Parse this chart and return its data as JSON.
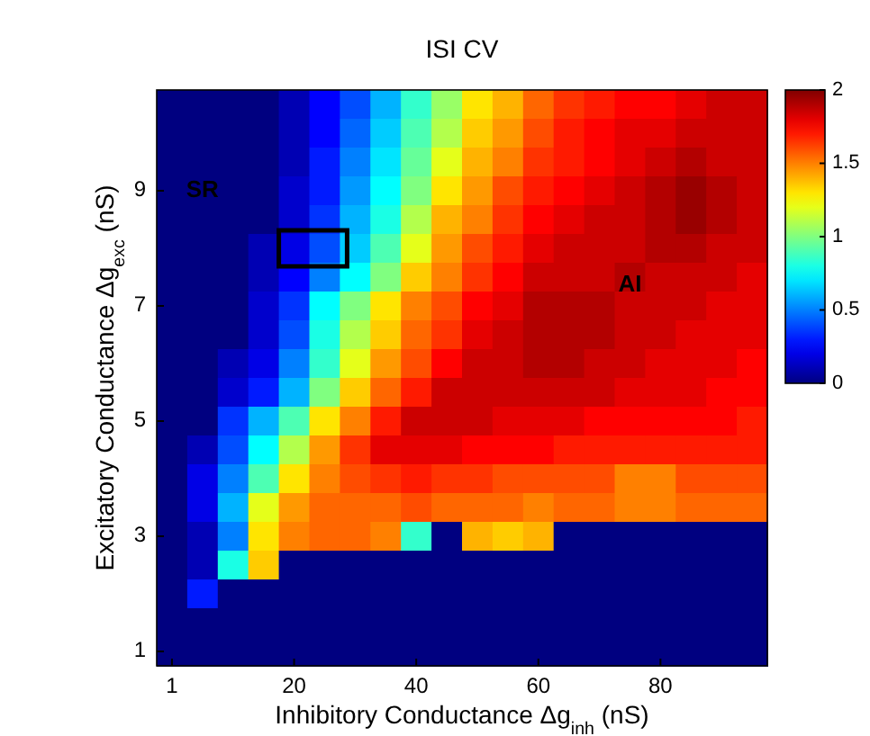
{
  "chart_data": {
    "type": "heatmap",
    "title": "ISI CV",
    "xlabel": "Inhibitory Conductance Δg$_{inh}$ (nS)",
    "ylabel": "Excitatory Conductance Δg$_{exc}$ (nS)",
    "categories": [
      "1",
      null,
      null,
      null,
      "20",
      null,
      null,
      null,
      "40",
      null,
      null,
      null,
      "60",
      null,
      null,
      null,
      "80",
      null,
      null,
      null
    ],
    "y_categories": [
      null,
      null,
      null,
      "9",
      null,
      null,
      null,
      "7",
      null,
      null,
      null,
      "5",
      null,
      null,
      null,
      "3",
      null,
      null,
      null,
      "1"
    ],
    "cells": [
      [
        0,
        0,
        0,
        0,
        0.1,
        0.25,
        0.4,
        0.6,
        0.85,
        1.05,
        1.3,
        1.4,
        1.55,
        1.65,
        1.7,
        1.75,
        1.75,
        1.8,
        1.85,
        1.85
      ],
      [
        0,
        0,
        0,
        0,
        0.1,
        0.25,
        0.45,
        0.65,
        0.9,
        1.1,
        1.35,
        1.45,
        1.6,
        1.7,
        1.75,
        1.8,
        1.8,
        1.85,
        1.85,
        1.85
      ],
      [
        0,
        0,
        0,
        0,
        0.1,
        0.3,
        0.5,
        0.7,
        0.95,
        1.2,
        1.4,
        1.5,
        1.65,
        1.7,
        1.75,
        1.8,
        1.85,
        1.9,
        1.85,
        1.85
      ],
      [
        0,
        0,
        0,
        0,
        0.15,
        0.3,
        0.55,
        0.75,
        1.0,
        1.3,
        1.45,
        1.6,
        1.7,
        1.75,
        1.8,
        1.85,
        1.9,
        1.95,
        1.9,
        1.85
      ],
      [
        0,
        0,
        0,
        0,
        0.15,
        0.35,
        0.6,
        0.8,
        1.1,
        1.4,
        1.5,
        1.65,
        1.75,
        1.8,
        1.85,
        1.85,
        1.9,
        1.95,
        1.9,
        1.85
      ],
      [
        0,
        0,
        0,
        0.1,
        0.2,
        0.4,
        0.65,
        0.9,
        1.2,
        1.45,
        1.6,
        1.7,
        1.8,
        1.85,
        1.85,
        1.85,
        1.9,
        1.9,
        1.85,
        1.85
      ],
      [
        0,
        0,
        0,
        0.1,
        0.25,
        0.5,
        0.75,
        1.0,
        1.35,
        1.5,
        1.65,
        1.75,
        1.85,
        1.85,
        1.85,
        1.9,
        1.85,
        1.85,
        1.85,
        1.8
      ],
      [
        0,
        0,
        0,
        0.15,
        0.35,
        0.75,
        1.0,
        1.3,
        1.5,
        1.6,
        1.75,
        1.8,
        1.9,
        1.9,
        1.9,
        1.85,
        1.85,
        1.85,
        1.8,
        1.8
      ],
      [
        0,
        0,
        0,
        0.15,
        0.4,
        0.8,
        1.1,
        1.35,
        1.55,
        1.65,
        1.8,
        1.85,
        1.9,
        1.9,
        1.9,
        1.85,
        1.85,
        1.8,
        1.8,
        1.8
      ],
      [
        0,
        0,
        0.1,
        0.2,
        0.5,
        0.85,
        1.2,
        1.45,
        1.6,
        1.75,
        1.85,
        1.85,
        1.9,
        1.9,
        1.85,
        1.85,
        1.8,
        1.8,
        1.8,
        1.75
      ],
      [
        0,
        0,
        0.15,
        0.3,
        0.6,
        1.0,
        1.35,
        1.55,
        1.7,
        1.85,
        1.85,
        1.85,
        1.85,
        1.85,
        1.85,
        1.8,
        1.8,
        1.8,
        1.75,
        1.75
      ],
      [
        0,
        0,
        0.35,
        0.6,
        0.9,
        1.3,
        1.5,
        1.7,
        1.85,
        1.85,
        1.85,
        1.8,
        1.8,
        1.8,
        1.75,
        1.75,
        1.75,
        1.75,
        1.75,
        1.7
      ],
      [
        0,
        0.1,
        0.4,
        0.75,
        1.1,
        1.45,
        1.65,
        1.8,
        1.8,
        1.8,
        1.75,
        1.75,
        1.75,
        1.7,
        1.7,
        1.7,
        1.7,
        1.7,
        1.7,
        1.7
      ],
      [
        0,
        0.2,
        0.5,
        0.9,
        1.3,
        1.5,
        1.6,
        1.65,
        1.7,
        1.65,
        1.65,
        1.6,
        1.6,
        1.6,
        1.6,
        1.5,
        1.5,
        1.6,
        1.6,
        1.6
      ],
      [
        0,
        0.2,
        0.6,
        1.2,
        1.45,
        1.55,
        1.55,
        1.55,
        1.6,
        1.55,
        1.55,
        1.55,
        1.5,
        1.55,
        1.55,
        1.5,
        1.5,
        1.55,
        1.55,
        1.55
      ],
      [
        0,
        0.1,
        0.5,
        1.3,
        1.5,
        1.55,
        1.55,
        1.5,
        0.85,
        0,
        1.4,
        1.35,
        1.4,
        0,
        0,
        0,
        0,
        0,
        0,
        0
      ],
      [
        0,
        0.1,
        0.8,
        1.35,
        0,
        0,
        0,
        0,
        0,
        0,
        0,
        0,
        0,
        0,
        0,
        0,
        0,
        0,
        0,
        0
      ],
      [
        0,
        0.3,
        0,
        0,
        0,
        0,
        0,
        0,
        0,
        0,
        0,
        0,
        0,
        0,
        0,
        0,
        0,
        0,
        0,
        0
      ],
      [
        0,
        0,
        0,
        0,
        0,
        0,
        0,
        0,
        0,
        0,
        0,
        0,
        0,
        0,
        0,
        0,
        0,
        0,
        0,
        0
      ],
      [
        0,
        0,
        0,
        0,
        0,
        0,
        0,
        0,
        0,
        0,
        0,
        0,
        0,
        0,
        0,
        0,
        0,
        0,
        0,
        0
      ]
    ],
    "clim": [
      0,
      2
    ],
    "cticks": [
      0,
      0.5,
      1,
      1.5,
      2
    ],
    "annotations": [
      "SR",
      "AI"
    ]
  }
}
